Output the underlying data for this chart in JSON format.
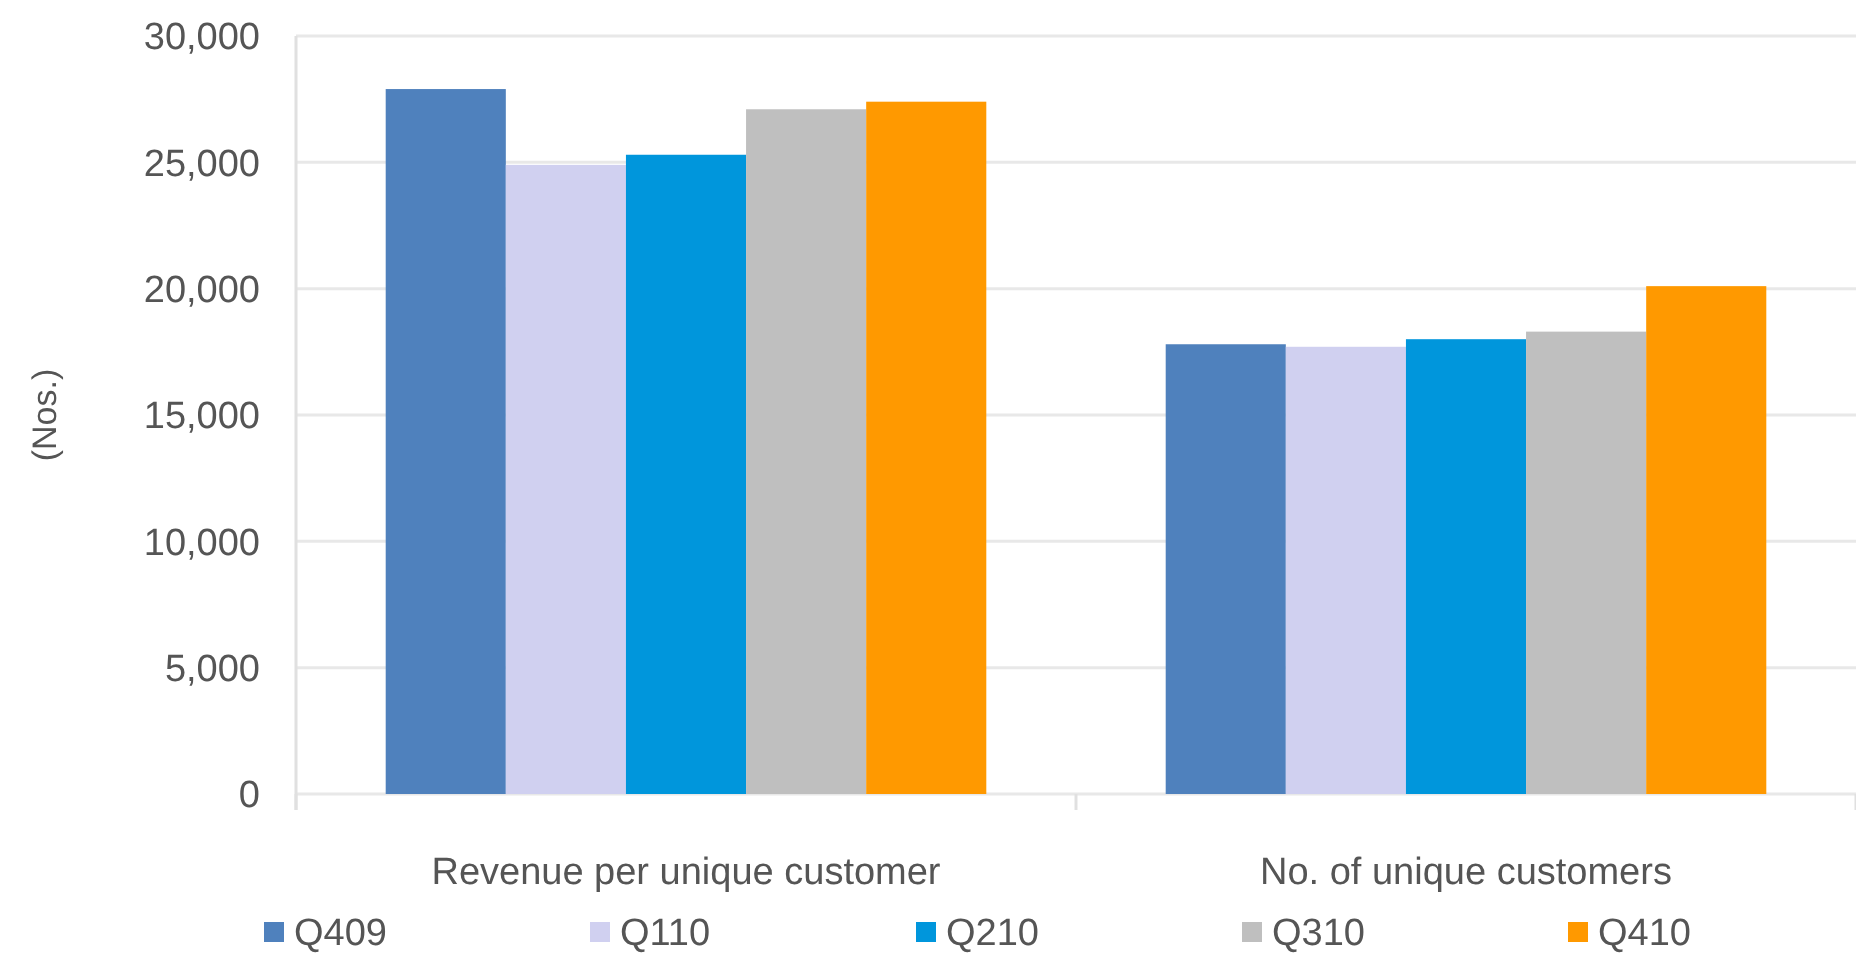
{
  "chart_data": {
    "type": "bar",
    "ylabel": "(Nos.)",
    "categories": [
      "Revenue per unique customer",
      "No. of unique customers"
    ],
    "series": [
      {
        "name": "Q409",
        "color": "#4f81bd",
        "values": [
          27900,
          17800
        ]
      },
      {
        "name": "Q110",
        "color": "#d0d0f0",
        "values": [
          24900,
          17700
        ]
      },
      {
        "name": "Q210",
        "color": "#0096dc",
        "values": [
          25300,
          18000
        ]
      },
      {
        "name": "Q310",
        "color": "#bfbfbf",
        "values": [
          27100,
          18300
        ]
      },
      {
        "name": "Q410",
        "color": "#ff9900",
        "values": [
          27400,
          20100
        ]
      }
    ],
    "ylim": [
      0,
      30000
    ],
    "yticks": [
      {
        "value": 0,
        "label": "0"
      },
      {
        "value": 5000,
        "label": "5,000"
      },
      {
        "value": 10000,
        "label": "10,000"
      },
      {
        "value": 15000,
        "label": "15,000"
      },
      {
        "value": 20000,
        "label": "20,000"
      },
      {
        "value": 25000,
        "label": "25,000"
      },
      {
        "value": 30000,
        "label": "30,000"
      }
    ],
    "grid": "y",
    "legend": "bottom"
  }
}
